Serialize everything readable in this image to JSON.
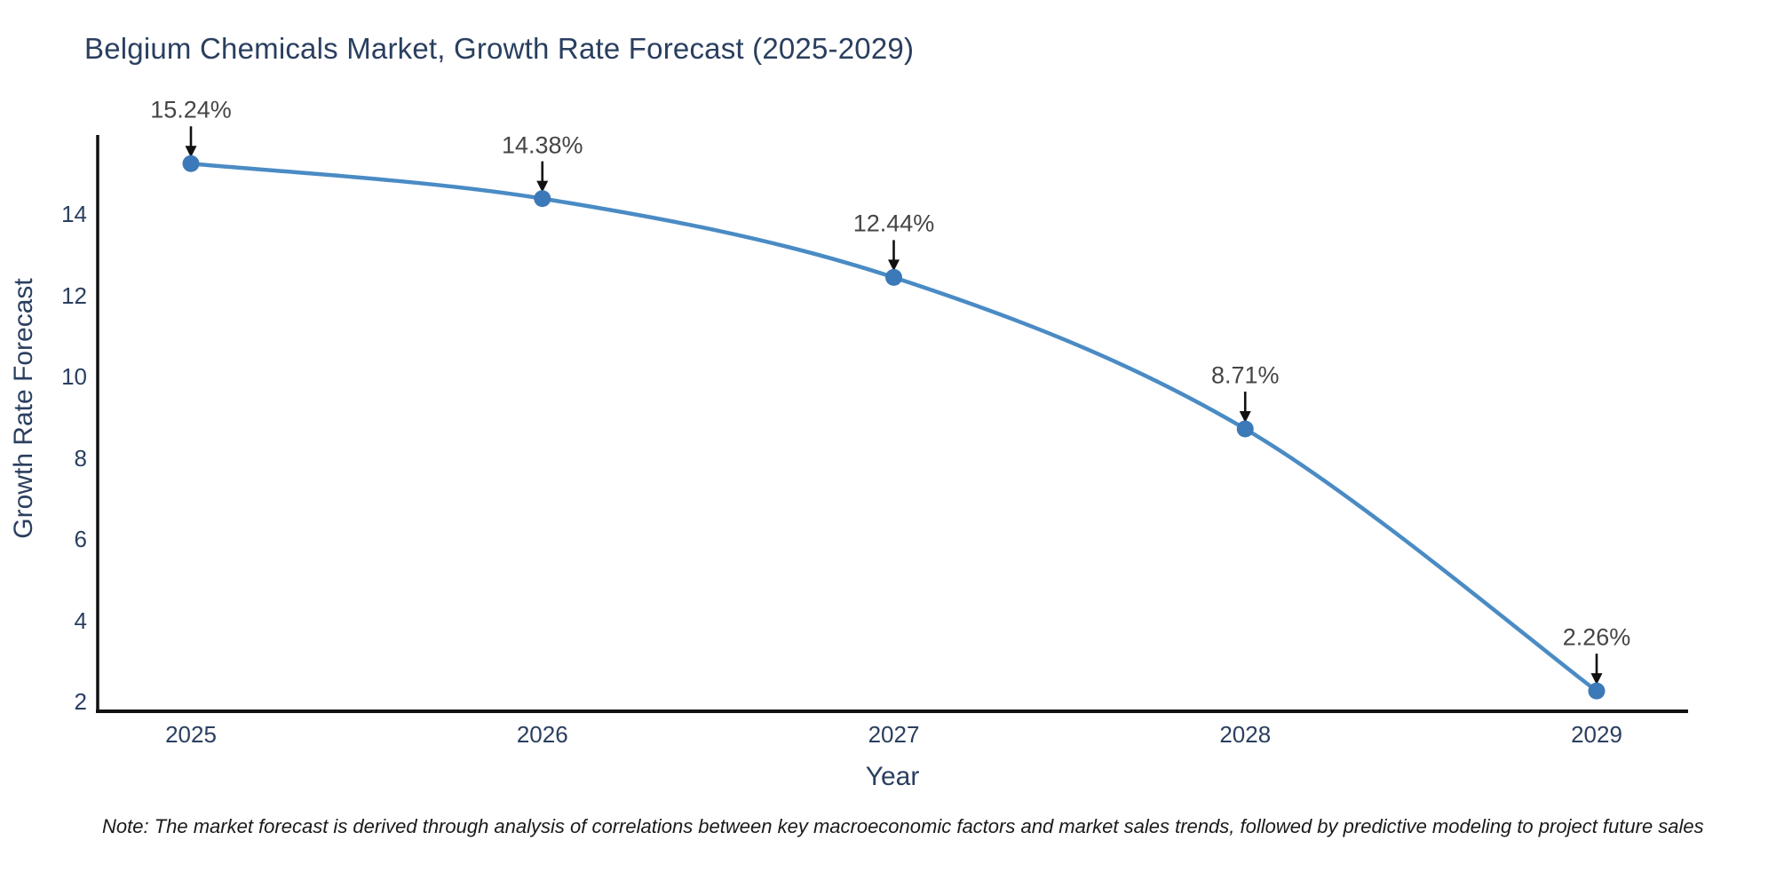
{
  "note": "Note: The market forecast is derived through analysis of correlations between key macroeconomic factors and market sales trends, followed by predictive modeling to project future sales",
  "chart_data": {
    "type": "line",
    "title": "Belgium Chemicals Market, Growth Rate Forecast (2025-2029)",
    "xlabel": "Year",
    "ylabel": "Growth Rate Forecast",
    "x": [
      2025,
      2026,
      2027,
      2028,
      2029
    ],
    "values": [
      15.24,
      14.38,
      12.44,
      8.71,
      2.26
    ],
    "point_labels": [
      "15.24%",
      "14.38%",
      "12.44%",
      "8.71%",
      "2.26%"
    ],
    "x_ticks": [
      "2025",
      "2026",
      "2027",
      "2028",
      "2029"
    ],
    "y_ticks": [
      2,
      4,
      6,
      8,
      10,
      12,
      14
    ],
    "ylim": [
      1.75,
      16.0
    ],
    "grid": false,
    "legend": null,
    "marker_style": "filled-circle",
    "annotation_arrows": "black arrow pointing down from each value label to its marker",
    "colors": {
      "line": "#4a8bc4",
      "marker": "#3c79b8",
      "axis_line": "#111111",
      "axis_text": "#2a3f5f",
      "annotation_text": "#454545",
      "arrow": "#111111",
      "note_text": "#1a1a1a",
      "background": "#ffffff"
    }
  }
}
